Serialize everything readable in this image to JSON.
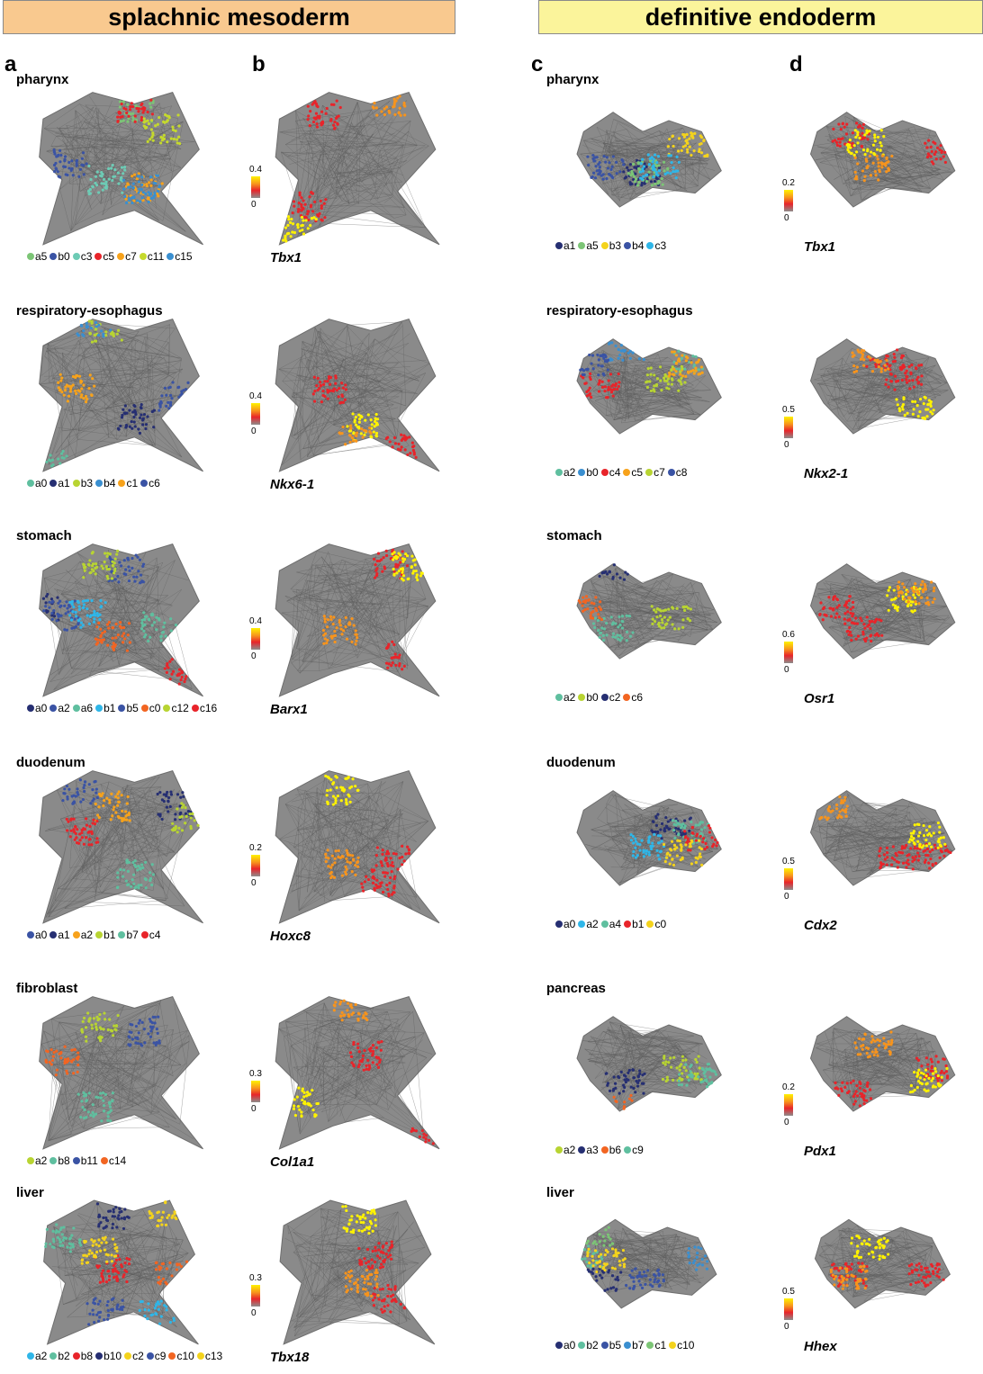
{
  "headers": {
    "left": "splachnic mesoderm",
    "right": "definitive endoderm"
  },
  "panel_letters": [
    "a",
    "b",
    "c",
    "d"
  ],
  "colors": {
    "edge": "#6e6e6e",
    "node_bg": "#7f7f7f",
    "yellow": "#fff200",
    "red": "#e8242a"
  },
  "rows": [
    {
      "meso": {
        "organ": "pharynx",
        "legend": [
          {
            "label": "a5",
            "color": "#7cc576"
          },
          {
            "label": "b0",
            "color": "#3a53a4"
          },
          {
            "label": "c3",
            "color": "#6dcbb5"
          },
          {
            "label": "c5",
            "color": "#e8242a"
          },
          {
            "label": "c7",
            "color": "#f7a21b"
          },
          {
            "label": "c11",
            "color": "#c5d92d"
          },
          {
            "label": "c15",
            "color": "#3a8fd0"
          }
        ],
        "gene": "Tbx1",
        "cmax": "0.4",
        "cmin": "0"
      },
      "endo": {
        "organ": "pharynx",
        "legend": [
          {
            "label": "a1",
            "color": "#262f72"
          },
          {
            "label": "a5",
            "color": "#7cc576"
          },
          {
            "label": "b3",
            "color": "#f4d31c"
          },
          {
            "label": "b4",
            "color": "#3a53a4"
          },
          {
            "label": "c3",
            "color": "#2fb6e8"
          }
        ],
        "gene": "Tbx1",
        "cmax": "0.2",
        "cmin": "0"
      }
    },
    {
      "meso": {
        "organ": "respiratory-esophagus",
        "legend": [
          {
            "label": "a0",
            "color": "#5fbf9f"
          },
          {
            "label": "a1",
            "color": "#262f72"
          },
          {
            "label": "b3",
            "color": "#b8d432"
          },
          {
            "label": "b4",
            "color": "#3a8fd0"
          },
          {
            "label": "c1",
            "color": "#f7a21b"
          },
          {
            "label": "c6",
            "color": "#3a53a4"
          }
        ],
        "gene": "Nkx6-1",
        "cmax": "0.4",
        "cmin": "0"
      },
      "endo": {
        "organ": "respiratory-esophagus",
        "legend": [
          {
            "label": "a2",
            "color": "#5fbf9f"
          },
          {
            "label": "b0",
            "color": "#3a8fd0"
          },
          {
            "label": "c4",
            "color": "#e8242a"
          },
          {
            "label": "c5",
            "color": "#f7a21b"
          },
          {
            "label": "c7",
            "color": "#b8d432"
          },
          {
            "label": "c8",
            "color": "#3a53a4"
          }
        ],
        "gene": "Nkx2-1",
        "cmax": "0.5",
        "cmin": "0"
      }
    },
    {
      "meso": {
        "organ": "stomach",
        "legend": [
          {
            "label": "a0",
            "color": "#262f72"
          },
          {
            "label": "a2",
            "color": "#3a53a4"
          },
          {
            "label": "a6",
            "color": "#5fbf9f"
          },
          {
            "label": "b1",
            "color": "#2fb6e8"
          },
          {
            "label": "b5",
            "color": "#3a53a4"
          },
          {
            "label": "c0",
            "color": "#f26522"
          },
          {
            "label": "c12",
            "color": "#b8d432"
          },
          {
            "label": "c16",
            "color": "#e8242a"
          }
        ],
        "gene": "Barx1",
        "cmax": "0.4",
        "cmin": "0"
      },
      "endo": {
        "organ": "stomach",
        "legend": [
          {
            "label": "a2",
            "color": "#5fbf9f"
          },
          {
            "label": "b0",
            "color": "#b8d432"
          },
          {
            "label": "c2",
            "color": "#262f72"
          },
          {
            "label": "c6",
            "color": "#f26522"
          }
        ],
        "gene": "Osr1",
        "cmax": "0.6",
        "cmin": "0"
      }
    },
    {
      "meso": {
        "organ": "duodenum",
        "legend": [
          {
            "label": "a0",
            "color": "#3a53a4"
          },
          {
            "label": "a1",
            "color": "#262f72"
          },
          {
            "label": "a2",
            "color": "#f7a21b"
          },
          {
            "label": "b1",
            "color": "#b8d432"
          },
          {
            "label": "b7",
            "color": "#5fbf9f"
          },
          {
            "label": "c4",
            "color": "#e8242a"
          }
        ],
        "gene": "Hoxc8",
        "cmax": "0.2",
        "cmin": "0"
      },
      "endo": {
        "organ": "duodenum",
        "legend": [
          {
            "label": "a0",
            "color": "#262f72"
          },
          {
            "label": "a2",
            "color": "#2fb6e8"
          },
          {
            "label": "a4",
            "color": "#5fbf9f"
          },
          {
            "label": "b1",
            "color": "#e8242a"
          },
          {
            "label": "c0",
            "color": "#f4d31c"
          }
        ],
        "gene": "Cdx2",
        "cmax": "0.5",
        "cmin": "0"
      }
    },
    {
      "meso": {
        "organ": "fibroblast",
        "legend": [
          {
            "label": "a2",
            "color": "#b8d432"
          },
          {
            "label": "b8",
            "color": "#5fbf9f"
          },
          {
            "label": "b11",
            "color": "#3a53a4"
          },
          {
            "label": "c14",
            "color": "#f26522"
          }
        ],
        "gene": "Col1a1",
        "cmax": "0.3",
        "cmin": "0"
      },
      "endo": {
        "organ": "pancreas",
        "legend": [
          {
            "label": "a2",
            "color": "#b8d432"
          },
          {
            "label": "a3",
            "color": "#262f72"
          },
          {
            "label": "b6",
            "color": "#f26522"
          },
          {
            "label": "c9",
            "color": "#5fbf9f"
          }
        ],
        "gene": "Pdx1",
        "cmax": "0.2",
        "cmin": "0"
      }
    },
    {
      "meso": {
        "organ": "liver",
        "legend": [
          {
            "label": "a2",
            "color": "#2fb6e8"
          },
          {
            "label": "b2",
            "color": "#5fbf9f"
          },
          {
            "label": "b8",
            "color": "#e8242a"
          },
          {
            "label": "b10",
            "color": "#262f72"
          },
          {
            "label": "c2",
            "color": "#f4d31c"
          },
          {
            "label": "c9",
            "color": "#3a53a4"
          },
          {
            "label": "c10",
            "color": "#f26522"
          },
          {
            "label": "c13",
            "color": "#f4d31c"
          }
        ],
        "gene": "Tbx18",
        "cmax": "0.3",
        "cmin": "0"
      },
      "endo": {
        "organ": "liver",
        "legend": [
          {
            "label": "a0",
            "color": "#262f72"
          },
          {
            "label": "b2",
            "color": "#5fbf9f"
          },
          {
            "label": "b5",
            "color": "#3a53a4"
          },
          {
            "label": "b7",
            "color": "#3a8fd0"
          },
          {
            "label": "c1",
            "color": "#7cc576"
          },
          {
            "label": "c10",
            "color": "#f4d31c"
          }
        ],
        "gene": "Hhex",
        "cmax": "0.5",
        "cmin": "0"
      }
    }
  ]
}
